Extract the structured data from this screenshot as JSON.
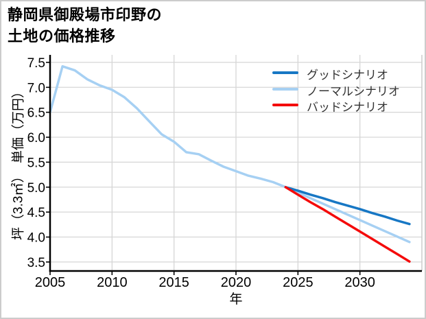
{
  "chart": {
    "title_line1": "静岡県御殿場市印野の",
    "title_line2": "土地の価格推移",
    "xlabel": "年",
    "ylabel": "坪（3.3㎡）　単価（万円）"
  },
  "chart_data": {
    "type": "line",
    "title": "静岡県御殿場市印野の土地の価格推移",
    "xlabel": "年",
    "ylabel": "坪（3.3㎡）　単価（万円）",
    "xlim": [
      2005,
      2035
    ],
    "ylim": [
      3.32,
      7.65
    ],
    "xticks": [
      2005,
      2010,
      2015,
      2020,
      2025,
      2030
    ],
    "yticks": [
      3.5,
      4.0,
      4.5,
      5.0,
      5.5,
      6.0,
      6.5,
      7.0,
      7.5
    ],
    "grid": true,
    "legend_position": "upper right",
    "colors": {
      "grid": "#d6d6d6",
      "frame": "#cccccc",
      "axis": "#000000",
      "tick_text": "#000000",
      "legend_text": "#333333"
    },
    "series": [
      {
        "name": "グッドシナリオ",
        "color": "#1777c4",
        "line_width": 3.5,
        "z": 2,
        "x": [
          2024,
          2025,
          2026,
          2027,
          2028,
          2029,
          2030,
          2031,
          2032,
          2033,
          2034
        ],
        "values": [
          5.0,
          4.93,
          4.85,
          4.78,
          4.7,
          4.63,
          4.56,
          4.48,
          4.41,
          4.33,
          4.26
        ]
      },
      {
        "name": "ノーマルシナリオ",
        "color": "#a6d0f3",
        "line_width": 3.5,
        "z": 1,
        "x": [
          2005,
          2006,
          2007,
          2008,
          2009,
          2010,
          2011,
          2012,
          2013,
          2014,
          2015,
          2016,
          2017,
          2018,
          2019,
          2020,
          2021,
          2022,
          2023,
          2024,
          2025,
          2026,
          2027,
          2028,
          2029,
          2030,
          2031,
          2032,
          2033,
          2034
        ],
        "values": [
          6.5,
          7.42,
          7.34,
          7.16,
          7.04,
          6.95,
          6.8,
          6.58,
          6.32,
          6.06,
          5.91,
          5.7,
          5.66,
          5.53,
          5.41,
          5.32,
          5.23,
          5.17,
          5.1,
          5.0,
          4.89,
          4.78,
          4.67,
          4.56,
          4.45,
          4.34,
          4.23,
          4.12,
          4.01,
          3.9
        ]
      },
      {
        "name": "バッドシナリオ",
        "color": "#f40b0b",
        "line_width": 3.5,
        "z": 3,
        "x": [
          2024,
          2025,
          2026,
          2027,
          2028,
          2029,
          2030,
          2031,
          2032,
          2033,
          2034
        ],
        "values": [
          5.0,
          4.85,
          4.7,
          4.56,
          4.41,
          4.26,
          4.11,
          3.96,
          3.81,
          3.66,
          3.51
        ]
      }
    ]
  }
}
